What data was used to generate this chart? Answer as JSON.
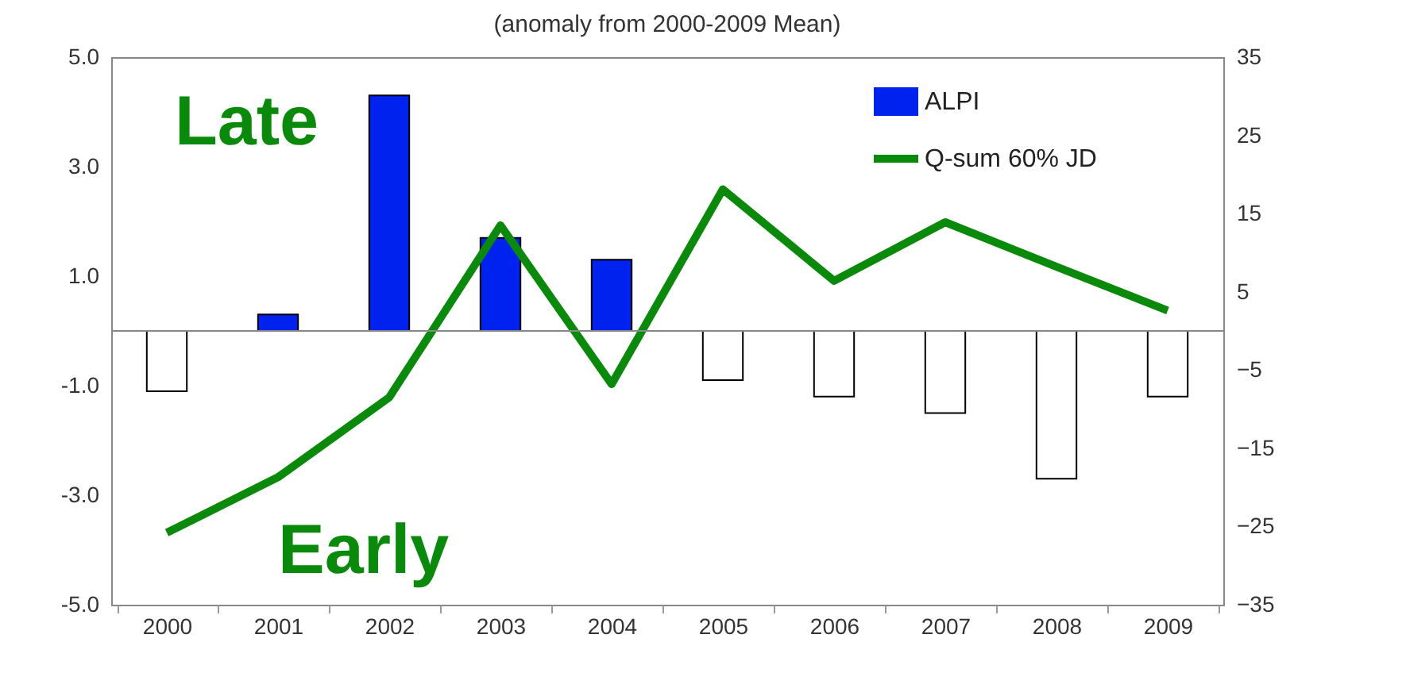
{
  "chart_data": {
    "type": "bar",
    "title": "(anomaly from 2000-2009 Mean)",
    "categories": [
      "2000",
      "2001",
      "2002",
      "2003",
      "2004",
      "2005",
      "2006",
      "2007",
      "2008",
      "2009"
    ],
    "series": [
      {
        "name": "ALPI",
        "color": "#0022ee",
        "colors": [
          "#ffffff",
          "#0022ee",
          "#0022ee",
          "#0022ee",
          "#0022ee",
          "#ffffff",
          "#ffffff",
          "#ffffff",
          "#ffffff",
          "#ffffff"
        ],
        "values": [
          -1.1,
          0.3,
          4.3,
          1.7,
          1.3,
          -0.9,
          -1.2,
          -1.5,
          -2.7,
          -1.2
        ]
      },
      {
        "name": "Q-sum 60% JD",
        "type": "line",
        "axis": "y2",
        "color": "#0a8a0a",
        "values": [
          -25.8,
          -18.7,
          -8.5,
          13.5,
          -6.8,
          18.1,
          6.4,
          13.9,
          8.2,
          2.6
        ]
      }
    ],
    "ylim": [
      -5,
      5
    ],
    "yticks": [
      {
        "value": -5,
        "label": "-5.0"
      },
      {
        "value": -3,
        "label": "-3.0"
      },
      {
        "value": -1,
        "label": "-1.0"
      },
      {
        "value": 1,
        "label": "1.0"
      },
      {
        "value": 3,
        "label": "3.0"
      },
      {
        "value": 5,
        "label": "5.0"
      }
    ],
    "y2lim": [
      -35,
      35
    ],
    "y2ticks": [
      -35,
      -25,
      -15,
      -5,
      5,
      15,
      25,
      35
    ],
    "annotations": [
      "Late",
      "Early"
    ],
    "legend": "top right",
    "grid": false,
    "marker": "none"
  }
}
